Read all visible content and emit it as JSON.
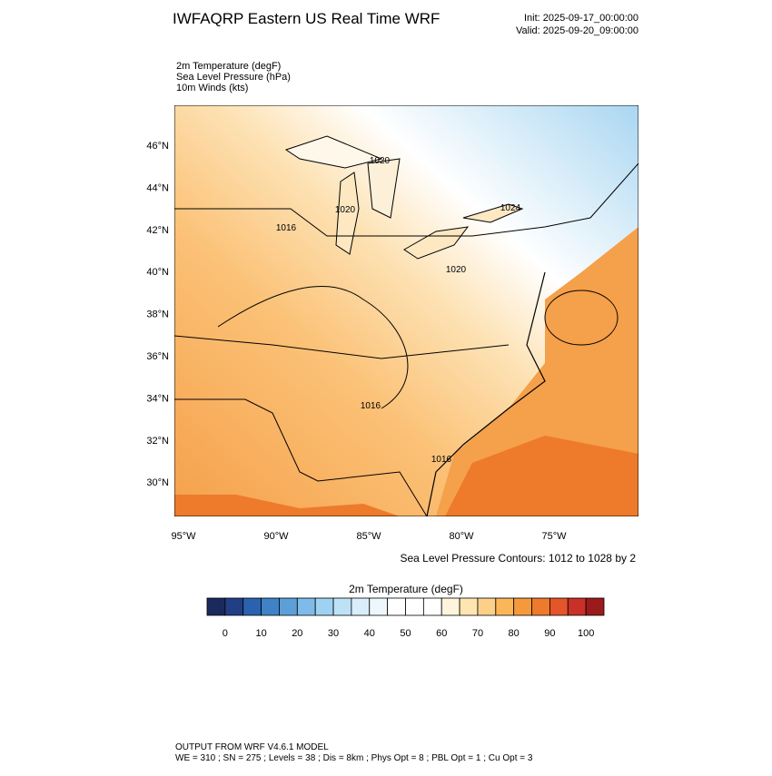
{
  "header": {
    "title": "IWFAQRP Eastern US Real Time WRF",
    "init": "Init: 2025-09-17_00:00:00",
    "valid": "Valid: 2025-09-20_09:00:00"
  },
  "fields": [
    "2m Temperature   (degF)",
    "Sea Level Pressure   (hPa)",
    "10m Winds   (kts)"
  ],
  "map": {
    "lat_labels": [
      "46°N",
      "44°N",
      "42°N",
      "40°N",
      "38°N",
      "36°N",
      "34°N",
      "32°N",
      "30°N"
    ],
    "lon_labels": [
      "95°W",
      "90°W",
      "85°W",
      "80°W",
      "75°W"
    ],
    "contour_labels": [
      "1020",
      "1020",
      "1016",
      "1024",
      "1020",
      "1016",
      "1016"
    ],
    "contour_note": "Sea Level Pressure Contours: 1012 to 1028 by 2"
  },
  "colorbar": {
    "title": "2m Temperature  (degF)",
    "labels": [
      "0",
      "10",
      "20",
      "30",
      "40",
      "50",
      "60",
      "70",
      "80",
      "90",
      "100"
    ],
    "colors": [
      "#1b2a5c",
      "#223f86",
      "#2a62ae",
      "#3f82c6",
      "#5c9fd8",
      "#7fbbe8",
      "#9ed2f2",
      "#bde2f6",
      "#d9eefa",
      "#eef7fc",
      "#ffffff",
      "#ffffff",
      "#ffffff",
      "#fff4dc",
      "#ffe6b0",
      "#fdd08a",
      "#fbb65a",
      "#f59a3c",
      "#ee7a2c",
      "#e4552a",
      "#c93028",
      "#9b1a1c"
    ]
  },
  "footer": {
    "line1": "OUTPUT FROM WRF V4.6.1 MODEL",
    "line2": "WE = 310 ; SN = 275 ; Levels = 38 ; Dis = 8km ; Phys Opt = 8 ; PBL Opt = 1 ; Cu Opt = 3"
  }
}
